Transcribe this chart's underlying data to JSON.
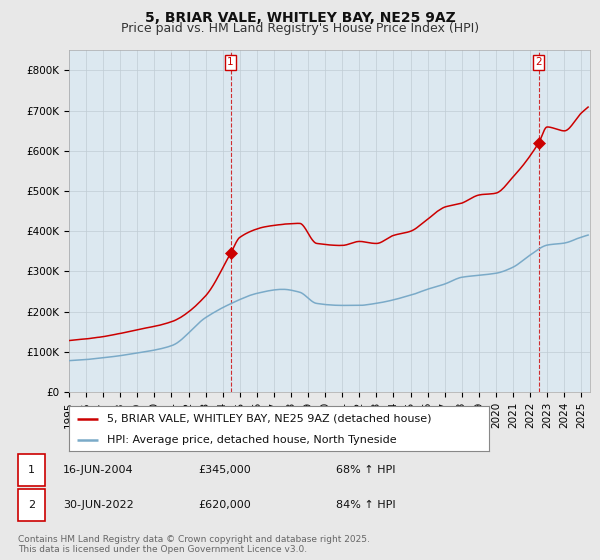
{
  "title": "5, BRIAR VALE, WHITLEY BAY, NE25 9AZ",
  "subtitle": "Price paid vs. HM Land Registry's House Price Index (HPI)",
  "ylim": [
    0,
    850000
  ],
  "yticks": [
    0,
    100000,
    200000,
    300000,
    400000,
    500000,
    600000,
    700000,
    800000
  ],
  "ytick_labels": [
    "£0",
    "£100K",
    "£200K",
    "£300K",
    "£400K",
    "£500K",
    "£600K",
    "£700K",
    "£800K"
  ],
  "xlim_start": 1995.0,
  "xlim_end": 2025.5,
  "background_color": "#e8e8e8",
  "plot_bg_color": "#dce8f0",
  "grid_color": "#c0ccd4",
  "red_color": "#cc0000",
  "blue_color": "#7aaac8",
  "transaction1_x": 2004.46,
  "transaction1_y": 345000,
  "transaction2_x": 2022.5,
  "transaction2_y": 620000,
  "legend_label_red": "5, BRIAR VALE, WHITLEY BAY, NE25 9AZ (detached house)",
  "legend_label_blue": "HPI: Average price, detached house, North Tyneside",
  "table_row1": [
    "1",
    "16-JUN-2004",
    "£345,000",
    "68% ↑ HPI"
  ],
  "table_row2": [
    "2",
    "30-JUN-2022",
    "£620,000",
    "84% ↑ HPI"
  ],
  "footer": "Contains HM Land Registry data © Crown copyright and database right 2025.\nThis data is licensed under the Open Government Licence v3.0.",
  "title_fontsize": 10,
  "subtitle_fontsize": 9,
  "tick_fontsize": 7.5,
  "legend_fontsize": 8,
  "table_fontsize": 8,
  "footer_fontsize": 6.5
}
